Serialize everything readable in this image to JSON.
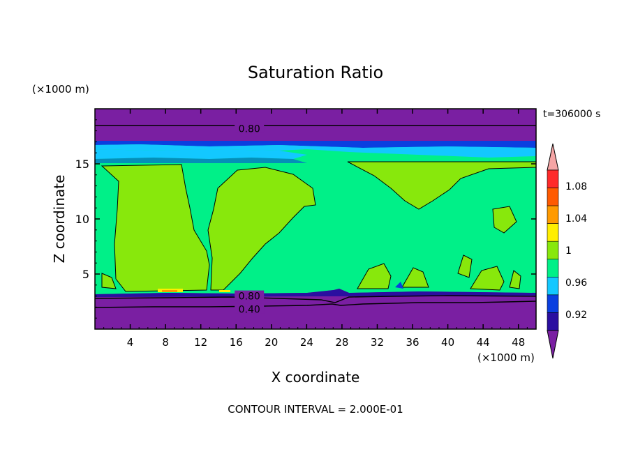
{
  "chart_data": {
    "type": "heatmap",
    "title": "Saturation Ratio",
    "xlabel": "X coordinate",
    "ylabel": "Z coordinate",
    "x_unit": "(×1000 m)",
    "y_unit": "(×1000 m)",
    "time_label": "t=306000 s",
    "footer": "CONTOUR INTERVAL = 2.000E-01",
    "xlim": [
      0,
      50
    ],
    "ylim": [
      0,
      20
    ],
    "x_ticks": [
      4,
      8,
      12,
      16,
      20,
      24,
      28,
      32,
      36,
      40,
      44,
      48
    ],
    "y_ticks": [
      5,
      10,
      15
    ],
    "contour_labels": [
      {
        "text": "0.80",
        "x": 17.5,
        "z": 18.2
      },
      {
        "text": "0.80",
        "x": 17.5,
        "z": 3.0
      },
      {
        "text": "0.40",
        "x": 17.5,
        "z": 1.8
      }
    ],
    "colorbar": {
      "levels": [
        0.9,
        0.92,
        0.94,
        0.96,
        0.98,
        1.0,
        1.02,
        1.04,
        1.06,
        1.08,
        1.1
      ],
      "tick_labels": [
        "0.92",
        "0.96",
        "1",
        "1.04",
        "1.08"
      ],
      "colors": [
        "#7a1fa2",
        "#2a0fa0",
        "#0a3fe0",
        "#13c8ff",
        "#00f088",
        "#88e80c",
        "#ffee00",
        "#ff9a00",
        "#ff5a00",
        "#ff2a2a",
        "#f5a5a5"
      ],
      "extend": "both"
    }
  }
}
